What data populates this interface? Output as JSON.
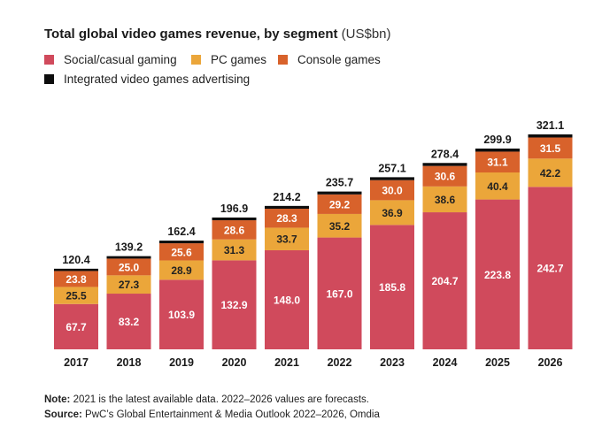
{
  "header": {
    "title_bold": "Total global video games revenue, by segment",
    "title_unit": "(US$bn)"
  },
  "chart_data": {
    "type": "bar",
    "stacked": true,
    "categories": [
      "2017",
      "2018",
      "2019",
      "2020",
      "2021",
      "2022",
      "2023",
      "2024",
      "2025",
      "2026"
    ],
    "series": [
      {
        "name": "Social/casual gaming",
        "color": "#d04a5c",
        "label_color": "#ffffff",
        "values": [
          67.7,
          83.2,
          103.9,
          132.9,
          148.0,
          167.0,
          185.8,
          204.7,
          223.8,
          242.7
        ],
        "labels": [
          "67.7",
          "83.2",
          "103.9",
          "132.9",
          "148.0",
          "167.0",
          "185.8",
          "204.7",
          "223.8",
          "242.7"
        ]
      },
      {
        "name": "PC games",
        "color": "#eba63a",
        "label_color": "#222222",
        "values": [
          25.5,
          27.3,
          28.9,
          31.3,
          33.7,
          35.2,
          36.9,
          38.6,
          40.4,
          42.2
        ],
        "labels": [
          "25.5",
          "27.3",
          "28.9",
          "31.3",
          "33.7",
          "35.2",
          "36.9",
          "38.6",
          "40.4",
          "42.2"
        ]
      },
      {
        "name": "Console games",
        "color": "#d8622b",
        "label_color": "#ffffff",
        "values": [
          23.8,
          25.0,
          25.6,
          28.6,
          28.3,
          29.2,
          30.0,
          30.6,
          31.1,
          31.5
        ],
        "labels": [
          "23.8",
          "25.0",
          "25.6",
          "28.6",
          "28.3",
          "29.2",
          "30.0",
          "30.6",
          "31.1",
          "31.5"
        ]
      },
      {
        "name": "Integrated video games advertising",
        "color": "#0d0d0d",
        "label_color": "#ffffff",
        "values": [
          3.4,
          3.7,
          4.0,
          4.1,
          4.2,
          4.3,
          4.4,
          4.5,
          4.6,
          4.7
        ],
        "labels": []
      }
    ],
    "totals": [
      "120.4",
      "139.2",
      "162.4",
      "196.9",
      "214.2",
      "235.7",
      "257.1",
      "278.4",
      "299.9",
      "321.1"
    ],
    "total_values": [
      120.4,
      139.2,
      162.4,
      196.9,
      214.2,
      235.7,
      257.1,
      278.4,
      299.9,
      321.1
    ],
    "ylim": [
      0,
      340
    ],
    "grid": false,
    "legend_position": "top-left"
  },
  "footer": {
    "note_label": "Note:",
    "note_text": "2021 is the latest available data. 2022–2026 values are forecasts.",
    "source_label": "Source:",
    "source_text": "PwC’s Global Entertainment & Media Outlook 2022–2026, Omdia"
  }
}
